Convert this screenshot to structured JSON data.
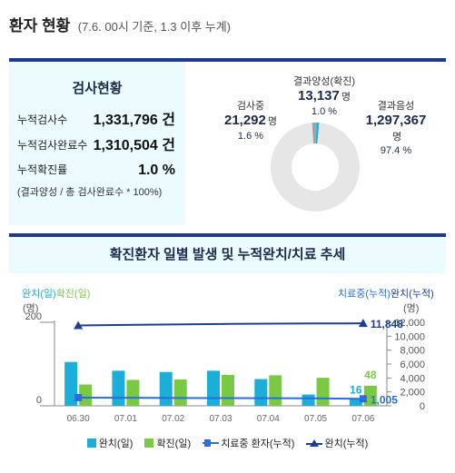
{
  "header": {
    "title": "환자 현황",
    "subtitle": "(7.6. 00시 기준, 1.3 이후 누계)"
  },
  "test_status": {
    "title": "검사현황",
    "rows": [
      {
        "label": "누적검사수",
        "value": "1,331,796 건"
      },
      {
        "label": "누적검사완료수",
        "value": "1,310,504 건"
      },
      {
        "label": "누적확진률",
        "value": "1.0 %"
      }
    ],
    "note": "(결과양성 / 총 검사완료수 * 100%)"
  },
  "donut": {
    "segments": [
      {
        "name": "결과양성(확진)",
        "count": "13,137",
        "unit": "명",
        "pct": "1.0 %",
        "share": 0.01,
        "color": "#1aaed8"
      },
      {
        "name": "결과음성",
        "count": "1,297,367",
        "unit": "명",
        "pct": "97.4 %",
        "share": 0.974,
        "color": "#e6e6e6"
      },
      {
        "name": "검사중",
        "count": "21,292",
        "unit": "명",
        "pct": "1.6 %",
        "share": 0.016,
        "color": "#9aa3a8"
      }
    ]
  },
  "chart_data": {
    "type": "bar",
    "title": "확진환자 일별 발생 및 누적완치/치료 추세",
    "left_axis": {
      "label_a": "완치(일)",
      "label_b": "확진(일)",
      "unit": "(명)",
      "ylim": [
        0,
        200
      ],
      "ticks": [
        "200",
        "0"
      ]
    },
    "right_axis": {
      "label_a": "치료중(누적)",
      "label_b": "완치(누적)",
      "unit": "(명)",
      "ylim": [
        0,
        12000
      ],
      "ticks": [
        "12,000",
        "10,000",
        "8,000",
        "6,000",
        "4,000",
        "2,000",
        "0"
      ]
    },
    "categories": [
      "06.30",
      "07.01",
      "07.02",
      "07.03",
      "07.04",
      "07.05",
      "07.06"
    ],
    "series": [
      {
        "name": "완치(일)",
        "axis": "left",
        "kind": "bar",
        "color": "#1aaed8",
        "values": [
          105,
          84,
          81,
          84,
          64,
          27,
          16
        ]
      },
      {
        "name": "확진(일)",
        "axis": "left",
        "kind": "bar",
        "color": "#7ac943",
        "values": [
          51,
          62,
          63,
          74,
          73,
          67,
          48
        ]
      },
      {
        "name": "치료중 환자(누적)",
        "axis": "right",
        "kind": "line",
        "color": "#2a6edb",
        "values": [
          1180,
          1150,
          1130,
          1110,
          1100,
          1080,
          1005
        ]
      },
      {
        "name": "완치(누적)",
        "axis": "right",
        "kind": "line",
        "color": "#1c3f94",
        "values": [
          11537,
          11621,
          11684,
          11758,
          11811,
          11832,
          11848
        ]
      }
    ],
    "annotations": {
      "recovered_day_last": "16",
      "confirmed_day_last": "48",
      "treating_last": "1,005",
      "recovered_cum_last": "11,848"
    }
  },
  "legend": [
    {
      "label": "완치(일)",
      "color": "#1aaed8",
      "kind": "bar"
    },
    {
      "label": "확진(일)",
      "color": "#7ac943",
      "kind": "bar"
    },
    {
      "label": "치료중 환자(누적)",
      "color": "#2a6edb",
      "kind": "line-square"
    },
    {
      "label": "완치(누적)",
      "color": "#1c3f94",
      "kind": "line-triangle"
    }
  ]
}
